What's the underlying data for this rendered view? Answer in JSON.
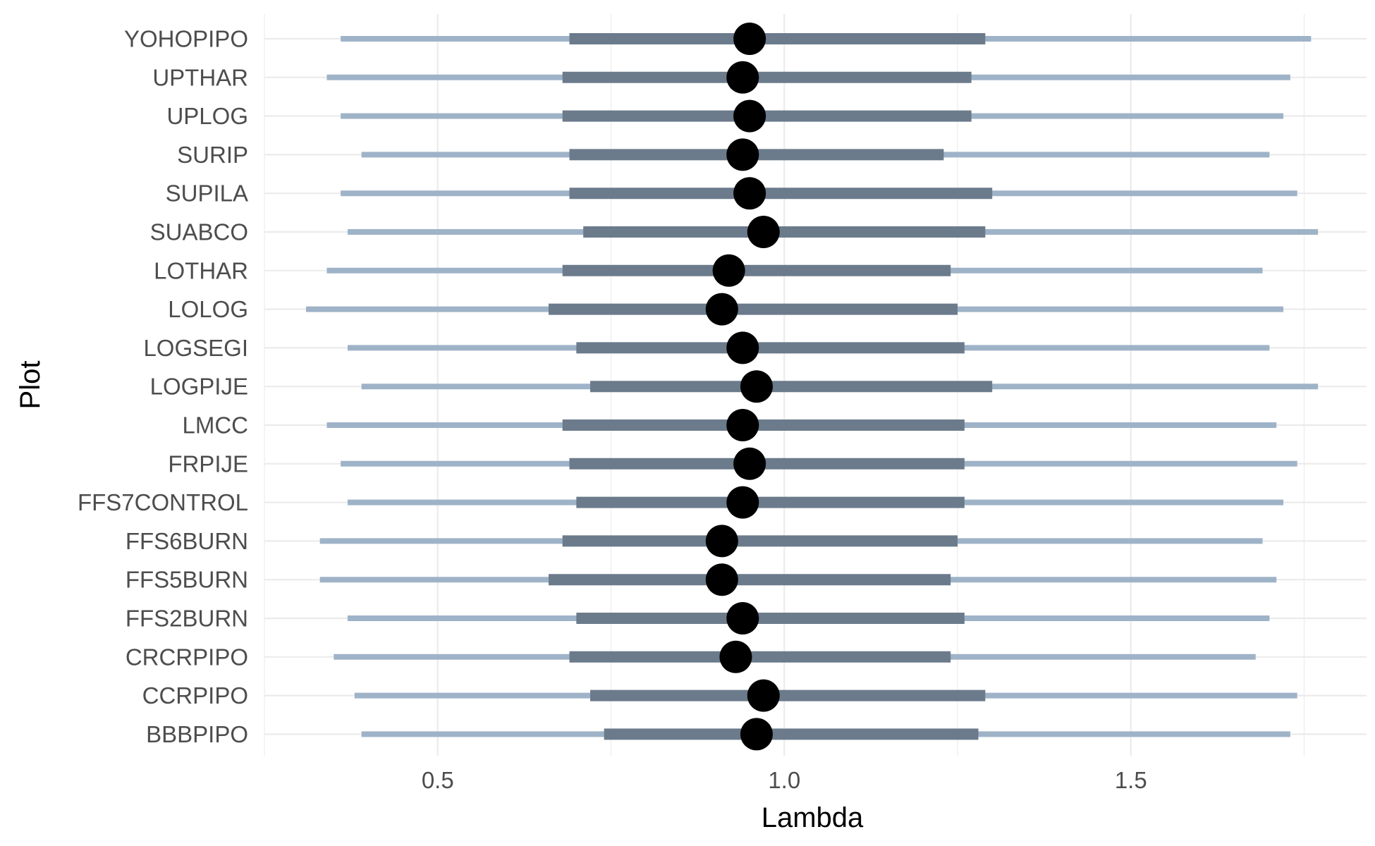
{
  "chart_data": {
    "type": "interval",
    "xlabel": "Lambda",
    "ylabel": "Plot",
    "xlim": [
      0.25,
      1.84
    ],
    "x_ticks": [
      0.5,
      1.0,
      1.5
    ],
    "x_tick_labels": [
      "0.5",
      "1.0",
      "1.5"
    ],
    "grid": true,
    "colors": {
      "outer_interval": "#9fb3c8",
      "inner_interval": "#6b7b8c",
      "point": "#000000",
      "grid": "#ebebeb"
    },
    "categories": [
      "YOHOPIPO",
      "UPTHAR",
      "UPLOG",
      "SURIP",
      "SUPILA",
      "SUABCO",
      "LOTHAR",
      "LOLOG",
      "LOGSEGI",
      "LOGPIJE",
      "LMCC",
      "FRPIJE",
      "FFS7CONTROL",
      "FFS6BURN",
      "FFS5BURN",
      "FFS2BURN",
      "CRCRPIPO",
      "CCRPIPO",
      "BBBPIPO"
    ],
    "points": [
      {
        "plot": "YOHOPIPO",
        "lambda": 0.95,
        "inner": [
          0.69,
          1.29
        ],
        "outer": [
          0.36,
          1.76
        ]
      },
      {
        "plot": "UPTHAR",
        "lambda": 0.94,
        "inner": [
          0.68,
          1.27
        ],
        "outer": [
          0.34,
          1.73
        ]
      },
      {
        "plot": "UPLOG",
        "lambda": 0.95,
        "inner": [
          0.68,
          1.27
        ],
        "outer": [
          0.36,
          1.72
        ]
      },
      {
        "plot": "SURIP",
        "lambda": 0.94,
        "inner": [
          0.69,
          1.23
        ],
        "outer": [
          0.39,
          1.7
        ]
      },
      {
        "plot": "SUPILA",
        "lambda": 0.95,
        "inner": [
          0.69,
          1.3
        ],
        "outer": [
          0.36,
          1.74
        ]
      },
      {
        "plot": "SUABCO",
        "lambda": 0.97,
        "inner": [
          0.71,
          1.29
        ],
        "outer": [
          0.37,
          1.77
        ]
      },
      {
        "plot": "LOTHAR",
        "lambda": 0.92,
        "inner": [
          0.68,
          1.24
        ],
        "outer": [
          0.34,
          1.69
        ]
      },
      {
        "plot": "LOLOG",
        "lambda": 0.91,
        "inner": [
          0.66,
          1.25
        ],
        "outer": [
          0.31,
          1.72
        ]
      },
      {
        "plot": "LOGSEGI",
        "lambda": 0.94,
        "inner": [
          0.7,
          1.26
        ],
        "outer": [
          0.37,
          1.7
        ]
      },
      {
        "plot": "LOGPIJE",
        "lambda": 0.96,
        "inner": [
          0.72,
          1.3
        ],
        "outer": [
          0.39,
          1.77
        ]
      },
      {
        "plot": "LMCC",
        "lambda": 0.94,
        "inner": [
          0.68,
          1.26
        ],
        "outer": [
          0.34,
          1.71
        ]
      },
      {
        "plot": "FRPIJE",
        "lambda": 0.95,
        "inner": [
          0.69,
          1.26
        ],
        "outer": [
          0.36,
          1.74
        ]
      },
      {
        "plot": "FFS7CONTROL",
        "lambda": 0.94,
        "inner": [
          0.7,
          1.26
        ],
        "outer": [
          0.37,
          1.72
        ]
      },
      {
        "plot": "FFS6BURN",
        "lambda": 0.91,
        "inner": [
          0.68,
          1.25
        ],
        "outer": [
          0.33,
          1.69
        ]
      },
      {
        "plot": "FFS5BURN",
        "lambda": 0.91,
        "inner": [
          0.66,
          1.24
        ],
        "outer": [
          0.33,
          1.71
        ]
      },
      {
        "plot": "FFS2BURN",
        "lambda": 0.94,
        "inner": [
          0.7,
          1.26
        ],
        "outer": [
          0.37,
          1.7
        ]
      },
      {
        "plot": "CRCRPIPO",
        "lambda": 0.93,
        "inner": [
          0.69,
          1.24
        ],
        "outer": [
          0.35,
          1.68
        ]
      },
      {
        "plot": "CCRPIPO",
        "lambda": 0.97,
        "inner": [
          0.72,
          1.29
        ],
        "outer": [
          0.38,
          1.74
        ]
      },
      {
        "plot": "BBBPIPO",
        "lambda": 0.96,
        "inner": [
          0.74,
          1.28
        ],
        "outer": [
          0.39,
          1.73
        ]
      }
    ]
  }
}
